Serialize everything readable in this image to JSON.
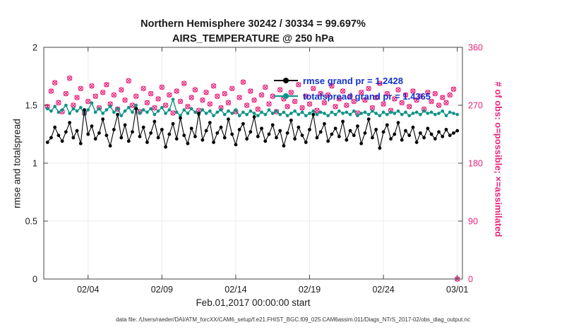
{
  "title_line1": "Northern Hemisphere 30242 / 30334 = 99.697%",
  "title_line2": "AIRS_TEMPERATURE @ 250 hPa",
  "ylabel_left": "rmse and totalspread",
  "ylabel_right": "# of obs: o=possible; ×=assimilated",
  "xlabel": "Feb.01,2017 00:00:00 start",
  "footer": "data file: /Users/raeder/DAI/ATM_forcXX/CAM6_setup/f.e21.FHIST_BGC.f09_025.CAM6assim.011/Diags_NTrS_2017-02/obs_diag_output.nc",
  "colors": {
    "rmse": "#000000",
    "totalspread": "#0d9488",
    "obs": "#e8247c",
    "legend_text": "#1133cc",
    "axis": "#444444",
    "grid": "#ececec"
  },
  "legend": [
    {
      "label": "rmse grand pr = 1.2428",
      "color": "#000000"
    },
    {
      "label": "totalspread grand pr = 1.4365",
      "color": "#0d9488"
    }
  ],
  "chart_data": {
    "type": "line",
    "title": "Northern Hemisphere 30242 / 30334 = 99.697% — AIRS_TEMPERATURE @ 250 hPa",
    "x_min": 1,
    "x_max": 29.35,
    "x_start": 1.25,
    "x_step": 0.25,
    "x_ticks": {
      "values": [
        4,
        9,
        14,
        19,
        24,
        29
      ],
      "labels": [
        "02/04",
        "02/09",
        "02/14",
        "02/19",
        "02/24",
        "03/01"
      ]
    },
    "y_left": {
      "min": 0,
      "max": 2,
      "ticks": [
        0,
        0.5,
        1,
        1.5,
        2
      ],
      "label": "rmse and totalspread"
    },
    "y_right": {
      "min": 0,
      "max": 360,
      "ticks": [
        0,
        90,
        180,
        270,
        360
      ],
      "label": "# of obs: o=possible; ×=assimilated"
    },
    "series": [
      {
        "name": "rmse",
        "axis": "left",
        "grand_mean": 1.2428,
        "color": "#000000",
        "values": [
          1.18,
          1.22,
          1.31,
          1.24,
          1.19,
          1.27,
          1.35,
          1.22,
          1.28,
          1.17,
          1.46,
          1.25,
          1.32,
          1.21,
          1.26,
          1.38,
          1.24,
          1.15,
          1.29,
          1.42,
          1.22,
          1.33,
          1.19,
          1.27,
          1.47,
          1.23,
          1.31,
          1.18,
          1.26,
          1.36,
          1.22,
          1.29,
          1.14,
          1.25,
          1.34,
          1.21,
          1.39,
          1.24,
          1.17,
          1.3,
          1.23,
          1.43,
          1.2,
          1.28,
          1.35,
          1.18,
          1.26,
          1.31,
          1.22,
          1.38,
          1.25,
          1.16,
          1.29,
          1.34,
          1.21,
          1.27,
          1.4,
          1.23,
          1.3,
          1.19,
          1.25,
          1.33,
          1.22,
          1.28,
          1.15,
          1.26,
          1.37,
          1.21,
          1.31,
          1.24,
          1.18,
          1.29,
          1.42,
          1.22,
          1.27,
          1.34,
          1.19,
          1.25,
          1.3,
          1.23,
          1.36,
          1.2,
          1.28,
          1.24,
          1.32,
          1.17,
          1.26,
          1.38,
          1.22,
          1.29,
          1.13,
          1.27,
          1.33,
          1.21,
          1.25,
          1.35,
          1.2,
          1.28,
          1.24,
          1.31,
          1.18,
          1.26,
          1.22,
          1.3,
          1.25,
          1.21,
          1.27,
          1.23,
          1.29,
          1.24,
          1.26,
          1.28
        ]
      },
      {
        "name": "totalspread",
        "axis": "left",
        "grand_mean": 1.4365,
        "color": "#0d9488",
        "values": [
          1.47,
          1.45,
          1.49,
          1.44,
          1.46,
          1.5,
          1.43,
          1.47,
          1.45,
          1.48,
          1.42,
          1.46,
          1.52,
          1.44,
          1.47,
          1.43,
          1.46,
          1.49,
          1.44,
          1.47,
          1.41,
          1.45,
          1.48,
          1.44,
          1.5,
          1.43,
          1.46,
          1.44,
          1.47,
          1.42,
          1.45,
          1.48,
          1.43,
          1.46,
          1.55,
          1.44,
          1.41,
          1.46,
          1.43,
          1.47,
          1.44,
          1.42,
          1.46,
          1.43,
          1.45,
          1.41,
          1.44,
          1.46,
          1.42,
          1.45,
          1.43,
          1.46,
          1.41,
          1.44,
          1.42,
          1.45,
          1.43,
          1.41,
          1.44,
          1.42,
          1.46,
          1.43,
          1.45,
          1.42,
          1.44,
          1.41,
          1.43,
          1.45,
          1.42,
          1.44,
          1.41,
          1.43,
          1.45,
          1.42,
          1.44,
          1.43,
          1.41,
          1.44,
          1.42,
          1.45,
          1.43,
          1.44,
          1.42,
          1.45,
          1.41,
          1.43,
          1.44,
          1.42,
          1.45,
          1.43,
          1.41,
          1.44,
          1.42,
          1.44,
          1.43,
          1.45,
          1.42,
          1.44,
          1.41,
          1.43,
          1.44,
          1.42,
          1.45,
          1.43,
          1.44,
          1.42,
          1.43,
          1.45,
          1.41,
          1.44,
          1.43,
          1.42
        ]
      },
      {
        "name": "obs_possible_and_assimilated",
        "axis": "right",
        "marker": "o+x",
        "color": "#e8247c",
        "values": [
          268,
          292,
          305,
          274,
          260,
          288,
          312,
          270,
          282,
          296,
          258,
          276,
          300,
          284,
          266,
          290,
          302,
          272,
          286,
          264,
          294,
          278,
          308,
          270,
          284,
          260,
          296,
          274,
          288,
          266,
          280,
          298,
          270,
          286,
          258,
          292,
          276,
          304,
          268,
          282,
          294,
          262,
          278,
          290,
          272,
          300,
          284,
          266,
          288,
          274,
          296,
          260,
          282,
          306,
          270,
          292,
          278,
          264,
          286,
          298,
          272,
          284,
          260,
          294,
          280,
          268,
          290,
          276,
          302,
          266,
          284,
          272,
          296,
          262,
          288,
          274,
          286,
          300,
          268,
          280,
          292,
          270,
          284,
          276,
          258,
          290,
          278,
          296,
          266,
          282,
          304,
          272,
          288,
          262,
          280,
          294,
          274,
          286,
          268,
          292,
          278,
          284,
          264,
          290,
          276,
          288,
          270,
          282,
          274,
          286,
          295,
          0
        ]
      }
    ]
  }
}
